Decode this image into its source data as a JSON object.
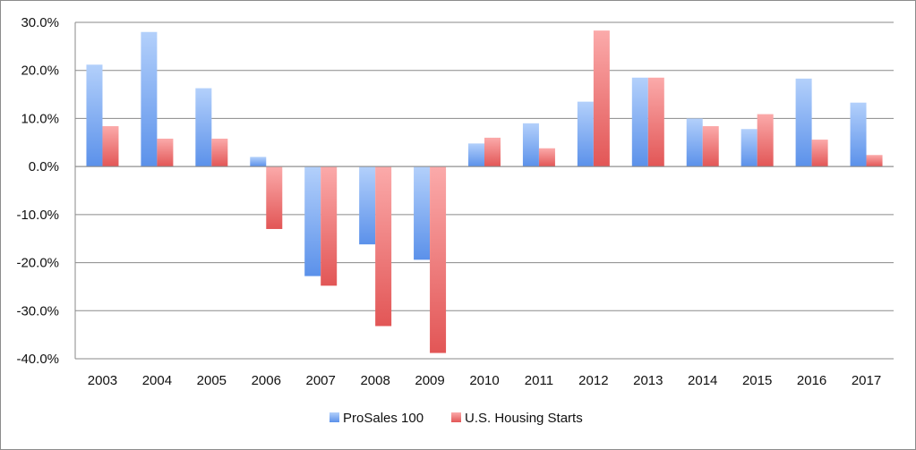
{
  "chart_data": {
    "type": "bar",
    "title": "",
    "xlabel": "",
    "ylabel": "",
    "categories": [
      "2003",
      "2004",
      "2005",
      "2006",
      "2007",
      "2008",
      "2009",
      "2010",
      "2011",
      "2012",
      "2013",
      "2014",
      "2015",
      "2016",
      "2017"
    ],
    "series": [
      {
        "name": "ProSales 100",
        "color": "#6fa0f0",
        "values": [
          21.2,
          28.0,
          16.3,
          2.0,
          -22.8,
          -16.2,
          -19.4,
          4.8,
          9.0,
          13.5,
          18.5,
          10.0,
          7.8,
          18.3,
          13.3
        ]
      },
      {
        "name": "U.S. Housing Starts",
        "color": "#ea6464",
        "values": [
          8.4,
          5.8,
          5.8,
          -13.0,
          -24.8,
          -33.2,
          -38.8,
          6.0,
          3.8,
          28.3,
          18.5,
          8.4,
          10.9,
          5.6,
          2.4
        ]
      }
    ],
    "ylim": [
      -40,
      30
    ],
    "yticks": [
      "30.0%",
      "20.0%",
      "10.0%",
      "0.0%",
      "-10.0%",
      "-20.0%",
      "-30.0%",
      "-40.0%"
    ],
    "ytick_values": [
      30,
      20,
      10,
      0,
      -10,
      -20,
      -30,
      -40
    ],
    "grid": true,
    "legend_position": "bottom"
  }
}
